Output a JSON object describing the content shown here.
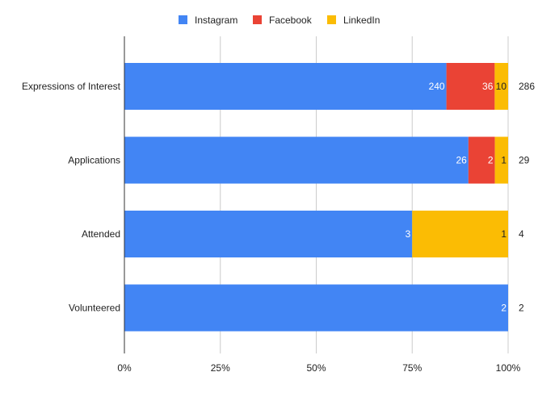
{
  "chart_data": {
    "type": "bar",
    "orientation": "horizontal",
    "stacked": "percent",
    "categories": [
      "Expressions of Interest",
      "Applications",
      "Attended",
      "Volunteered"
    ],
    "series": [
      {
        "name": "Instagram",
        "color": "#4285f4",
        "values": [
          240,
          26,
          3,
          2
        ],
        "label_color": "#ffffff"
      },
      {
        "name": "Facebook",
        "color": "#ea4335",
        "values": [
          36,
          2,
          0,
          0
        ],
        "label_color": "#ffffff"
      },
      {
        "name": "LinkedIn",
        "color": "#fbbc04",
        "values": [
          10,
          1,
          1,
          0
        ],
        "label_color": "#222222"
      }
    ],
    "totals": [
      286,
      29,
      4,
      2
    ],
    "x_ticks": [
      "0%",
      "25%",
      "50%",
      "75%",
      "100%"
    ],
    "xlim": [
      0,
      100
    ],
    "grid": true,
    "legend": "top-center"
  }
}
